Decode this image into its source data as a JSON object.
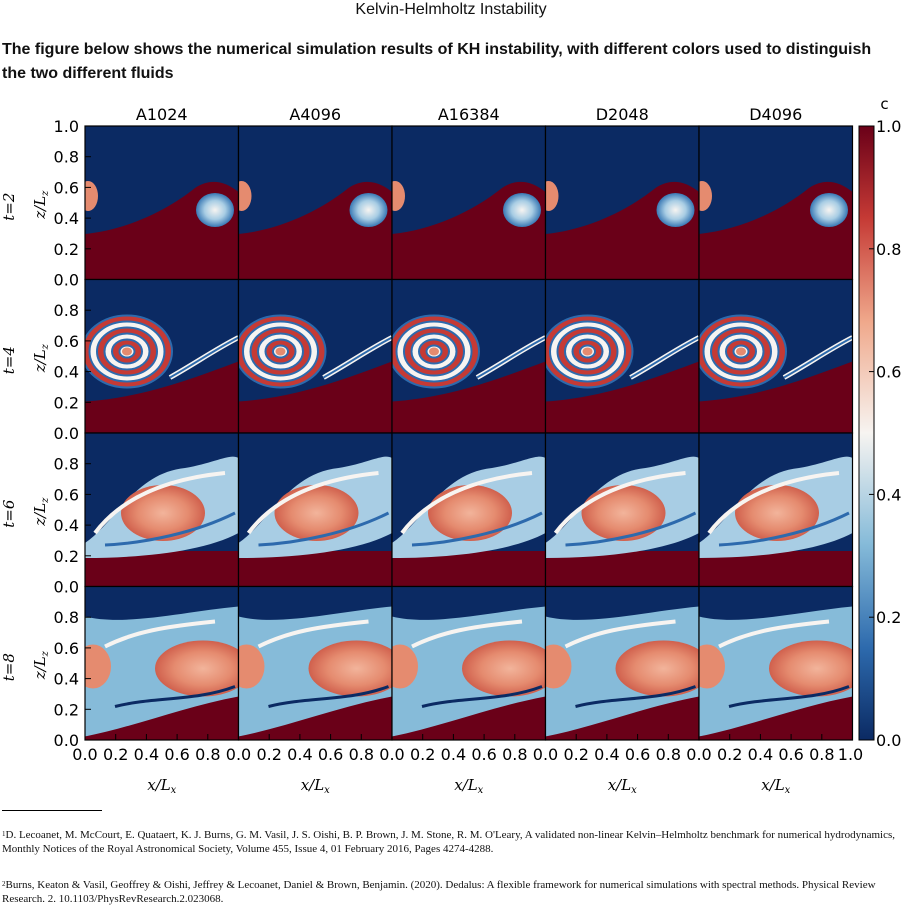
{
  "page": {
    "title": "Kelvin-Helmholtz Instability",
    "intro": "The figure below shows the numerical simulation results of KH instability, with different colors used to distinguish the two different fluids"
  },
  "figure": {
    "columns": [
      "A1024",
      "A4096",
      "A16384",
      "D2048",
      "D4096"
    ],
    "rows": [
      "t=2",
      "t=4",
      "t=6",
      "t=8"
    ],
    "ylabel": "z/L",
    "ylabel_sub": "z",
    "xlabel": "x/L",
    "xlabel_sub": "x",
    "y_ticks": [
      "1.0",
      "0.8",
      "0.6",
      "0.4",
      "0.2",
      "0.0"
    ],
    "x_ticks": [
      "0.0",
      "0.2",
      "0.4",
      "0.6",
      "0.8"
    ],
    "x_last_tick": "1.0",
    "colorbar_label": "c",
    "colorbar_ticks": [
      "1.0",
      "0.8",
      "0.6",
      "0.4",
      "0.2",
      "0.0"
    ],
    "colors": {
      "low": "#0b2a63",
      "mid": "#f7f4f1",
      "high": "#6a0018",
      "salmon": "#e58b6f"
    }
  },
  "footnotes": [
    {
      "mark": "1",
      "text": "D. Lecoanet, M. McCourt, E. Quataert, K. J. Burns, G. M. Vasil, J. S. Oishi, B. P. Brown, J. M. Stone, R. M. O'Leary, A validated non-linear Kelvin–Helmholtz benchmark for numerical hydrodynamics, Monthly Notices of the Royal Astronomical Society, Volume 455, Issue 4, 01 February 2016, Pages 4274-4288."
    },
    {
      "mark": "2",
      "text": "Burns, Keaton & Vasil, Geoffrey & Oishi, Jeffrey & Lecoanet, Daniel & Brown, Benjamin. (2020). Dedalus: A flexible framework for numerical simulations with spectral methods. Physical Review Research. 2. 10.1103/PhysRevResearch.2.023068."
    }
  ]
}
